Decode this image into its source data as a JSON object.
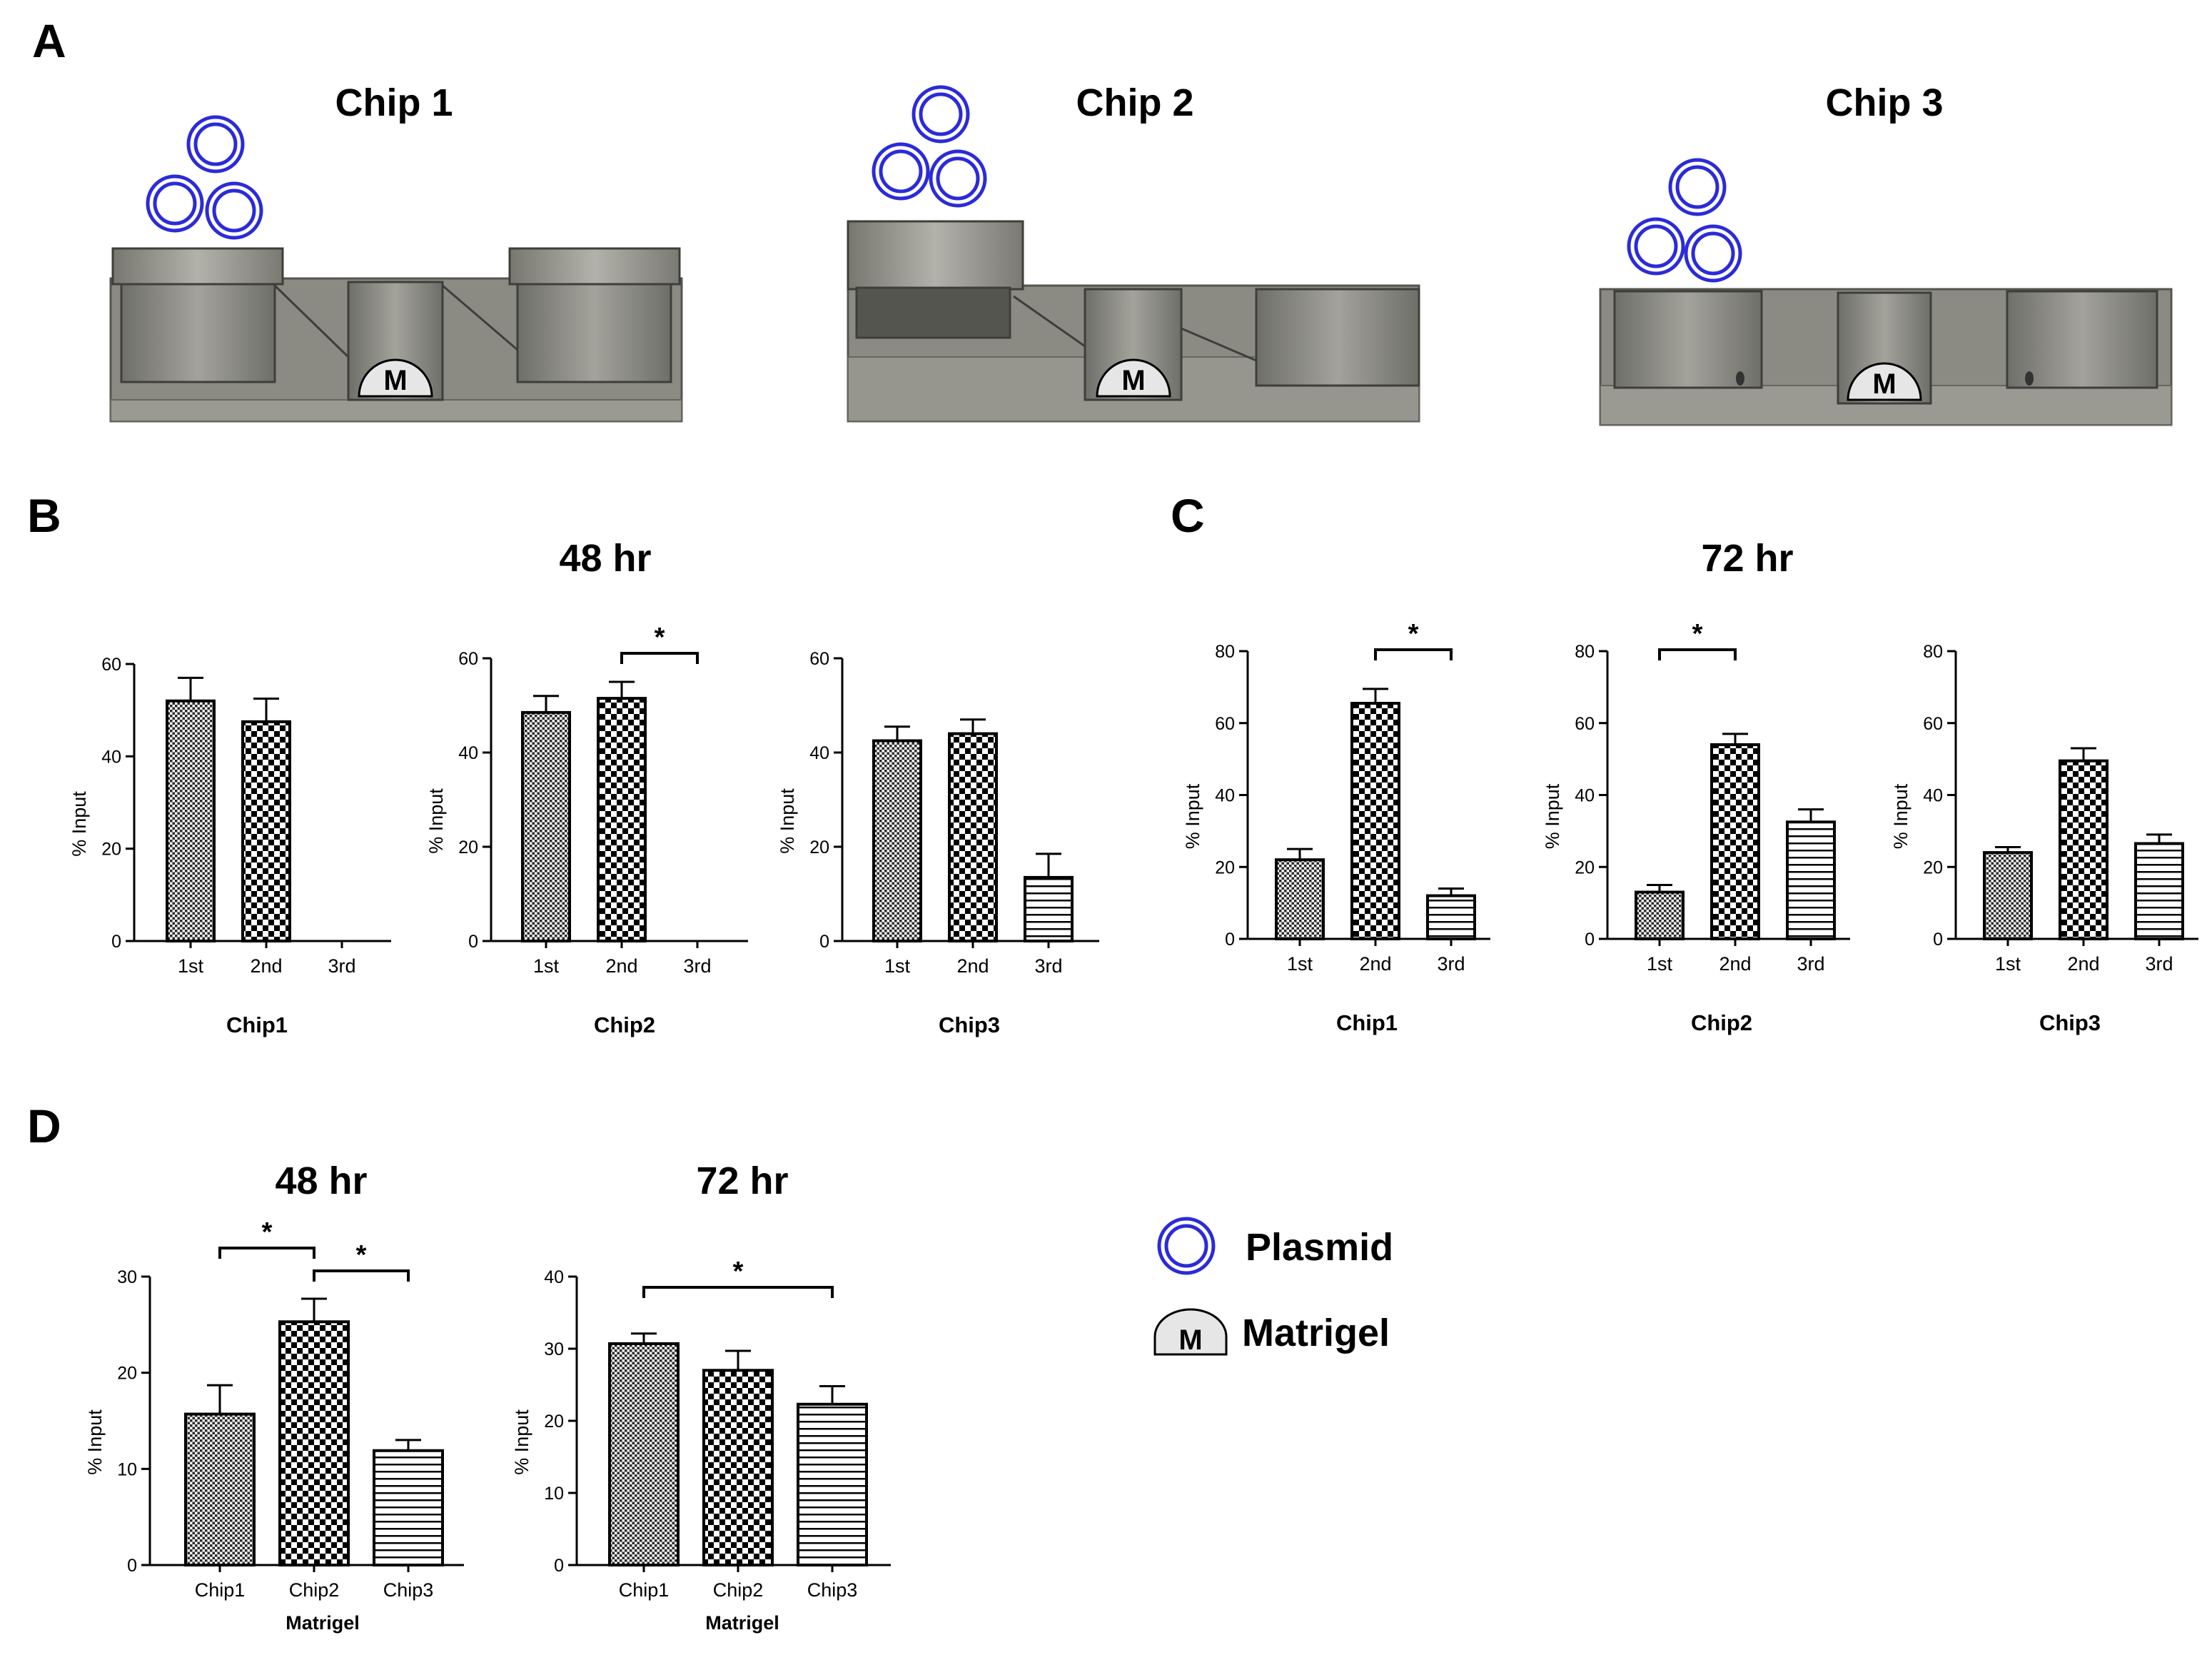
{
  "panels": {
    "A": "A",
    "B": "B",
    "C": "C",
    "D": "D"
  },
  "chips": [
    "Chip 1",
    "Chip 2",
    "Chip 3"
  ],
  "matrigel_symbol": "M",
  "legend": {
    "plasmid": "Plasmid",
    "matrigel": "Matrigel"
  },
  "time_titles": {
    "b": "48 hr",
    "c": "72 hr",
    "d48": "48 hr",
    "d72": "72 hr"
  },
  "colors": {
    "plasmid": "#2b2bd9",
    "device": "#8a8a82",
    "device_dark": "#55554f",
    "ink": "#000000"
  },
  "chart_data": [
    {
      "id": "B-chip1",
      "type": "bar",
      "time": "48 hr",
      "xlabel": "Chip1",
      "ylabel": "% Input",
      "categories": [
        "1st",
        "2nd",
        "3rd"
      ],
      "values": [
        52,
        47.5,
        0
      ],
      "errors": [
        5,
        5,
        0
      ],
      "patterns": [
        "dots",
        "check",
        "hstripe"
      ],
      "ylim": [
        0,
        60
      ],
      "yticks": [
        0,
        20,
        40,
        60
      ],
      "significance": []
    },
    {
      "id": "B-chip2",
      "type": "bar",
      "time": "48 hr",
      "xlabel": "Chip2",
      "ylabel": "% Input",
      "categories": [
        "1st",
        "2nd",
        "3rd"
      ],
      "values": [
        48.5,
        51.5,
        0
      ],
      "errors": [
        3.5,
        3.5,
        0
      ],
      "patterns": [
        "dots",
        "check",
        "hstripe"
      ],
      "ylim": [
        0,
        60
      ],
      "yticks": [
        0,
        20,
        40,
        60
      ],
      "significance": [
        {
          "from": 1,
          "to": 2,
          "label": "*"
        }
      ]
    },
    {
      "id": "B-chip3",
      "type": "bar",
      "time": "48 hr",
      "xlabel": "Chip3",
      "ylabel": "% Input",
      "categories": [
        "1st",
        "2nd",
        "3rd"
      ],
      "values": [
        42.5,
        44,
        13.5
      ],
      "errors": [
        3,
        3,
        5
      ],
      "patterns": [
        "dots",
        "check",
        "hstripe"
      ],
      "ylim": [
        0,
        60
      ],
      "yticks": [
        0,
        20,
        40,
        60
      ],
      "significance": []
    },
    {
      "id": "C-chip1",
      "type": "bar",
      "time": "72 hr",
      "xlabel": "Chip1",
      "ylabel": "% Input",
      "categories": [
        "1st",
        "2nd",
        "3rd"
      ],
      "values": [
        22,
        65.5,
        12
      ],
      "errors": [
        3,
        4,
        2
      ],
      "patterns": [
        "dots",
        "check",
        "hstripe"
      ],
      "ylim": [
        0,
        80
      ],
      "yticks": [
        0,
        20,
        40,
        60,
        80
      ],
      "significance": [
        {
          "from": 1,
          "to": 2,
          "label": "*"
        }
      ]
    },
    {
      "id": "C-chip2",
      "type": "bar",
      "time": "72 hr",
      "xlabel": "Chip2",
      "ylabel": "% Input",
      "categories": [
        "1st",
        "2nd",
        "3rd"
      ],
      "values": [
        13,
        54,
        32.5
      ],
      "errors": [
        2,
        3,
        3.5
      ],
      "patterns": [
        "dots",
        "check",
        "hstripe"
      ],
      "ylim": [
        0,
        80
      ],
      "yticks": [
        0,
        20,
        40,
        60,
        80
      ],
      "significance": [
        {
          "from": 0,
          "to": 1,
          "label": "*"
        }
      ]
    },
    {
      "id": "C-chip3",
      "type": "bar",
      "time": "72 hr",
      "xlabel": "Chip3",
      "ylabel": "% Input",
      "categories": [
        "1st",
        "2nd",
        "3rd"
      ],
      "values": [
        24,
        49.5,
        26.5
      ],
      "errors": [
        1.5,
        3.5,
        2.5
      ],
      "patterns": [
        "dots",
        "check",
        "hstripe"
      ],
      "ylim": [
        0,
        80
      ],
      "yticks": [
        0,
        20,
        40,
        60,
        80
      ],
      "significance": []
    },
    {
      "id": "D-48",
      "type": "bar",
      "time": "48 hr",
      "xlabel": "Matrigel",
      "ylabel": "% Input",
      "categories": [
        "Chip1",
        "Chip2",
        "Chip3"
      ],
      "values": [
        15.7,
        25.3,
        11.9
      ],
      "errors": [
        3,
        2.4,
        1.1
      ],
      "patterns": [
        "dots",
        "check",
        "hstripe"
      ],
      "ylim": [
        0,
        30
      ],
      "yticks": [
        0,
        10,
        20,
        30
      ],
      "significance": [
        {
          "from": 0,
          "to": 1,
          "label": "*"
        },
        {
          "from": 1,
          "to": 2,
          "label": "*"
        }
      ]
    },
    {
      "id": "D-72",
      "type": "bar",
      "time": "72 hr",
      "xlabel": "Matrigel",
      "ylabel": "% Input",
      "categories": [
        "Chip1",
        "Chip2",
        "Chip3"
      ],
      "values": [
        30.7,
        27,
        22.3
      ],
      "errors": [
        1.4,
        2.7,
        2.5
      ],
      "patterns": [
        "dots",
        "check",
        "hstripe"
      ],
      "ylim": [
        0,
        40
      ],
      "yticks": [
        0,
        10,
        20,
        30,
        40
      ],
      "significance": [
        {
          "from": 0,
          "to": 2,
          "label": "*"
        }
      ]
    }
  ]
}
